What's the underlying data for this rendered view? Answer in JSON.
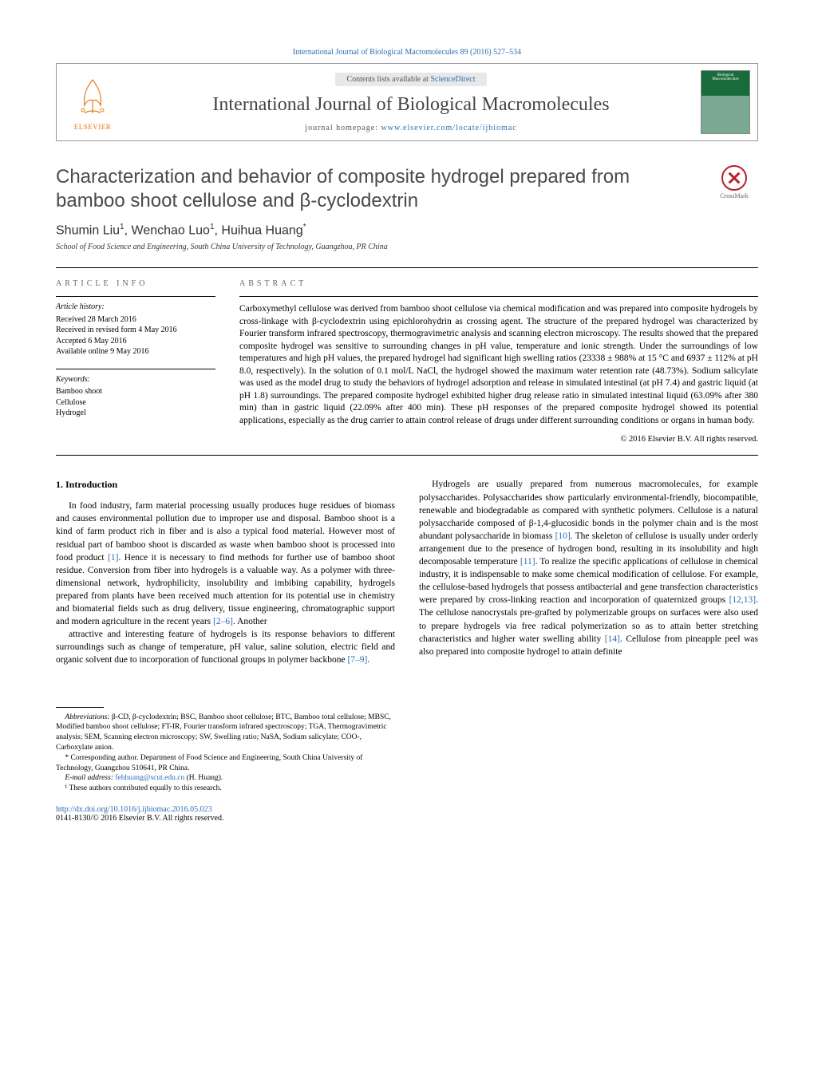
{
  "citation": "International Journal of Biological Macromolecules 89 (2016) 527–534",
  "header": {
    "contents_prefix": "Contents lists available at ",
    "contents_link": "ScienceDirect",
    "journal_title": "International Journal of Biological Macromolecules",
    "homepage_prefix": "journal homepage: ",
    "homepage_url": "www.elsevier.com/locate/ijbiomac",
    "publisher_label": "ELSEVIER",
    "cover_text": "Biological Macromolecules"
  },
  "article": {
    "title": "Characterization and behavior of composite hydrogel prepared from bamboo shoot cellulose and β-cyclodextrin",
    "crossmark_label": "CrossMark",
    "authors_html": "Shumin Liu<sup>1</sup>, Wenchao Luo<sup>1</sup>, Huihua Huang<sup class='author-star'>*</sup>",
    "affiliation": "School of Food Science and Engineering, South China University of Technology, Guangzhou, PR China"
  },
  "info": {
    "label": "ARTICLE INFO",
    "history_hdr": "Article history:",
    "history": [
      "Received 28 March 2016",
      "Received in revised form 4 May 2016",
      "Accepted 6 May 2016",
      "Available online 9 May 2016"
    ],
    "keywords_hdr": "Keywords:",
    "keywords": [
      "Bamboo shoot",
      "Cellulose",
      "Hydrogel"
    ]
  },
  "abstract": {
    "label": "ABSTRACT",
    "text": "Carboxymethyl cellulose was derived from bamboo shoot cellulose via chemical modification and was prepared into composite hydrogels by cross-linkage with β-cyclodextrin using epichlorohydrin as crossing agent. The structure of the prepared hydrogel was characterized by Fourier transform infrared spectroscopy, thermogravimetric analysis and scanning electron microscopy. The results showed that the prepared composite hydrogel was sensitive to surrounding changes in pH value, temperature and ionic strength. Under the surroundings of low temperatures and high pH values, the prepared hydrogel had significant high swelling ratios (23338 ± 988% at 15 °C and 6937 ± 112% at pH 8.0, respectively). In the solution of 0.1 mol/L NaCl, the hydrogel showed the maximum water retention rate (48.73%). Sodium salicylate was used as the model drug to study the behaviors of hydrogel adsorption and release in simulated intestinal (at pH 7.4) and gastric liquid (at pH 1.8) surroundings. The prepared composite hydrogel exhibited higher drug release ratio in simulated intestinal liquid (63.09% after 380 min) than in gastric liquid (22.09% after 400 min). These pH responses of the prepared composite hydrogel showed its potential applications, especially as the drug carrier to attain control release of drugs under different surrounding conditions or organs in human body.",
    "copyright": "© 2016 Elsevier B.V. All rights reserved."
  },
  "body": {
    "section_heading": "1. Introduction",
    "p1": "In food industry, farm material processing usually produces huge residues of biomass and causes environmental pollution due to improper use and disposal. Bamboo shoot is a kind of farm product rich in fiber and is also a typical food material. However most of residual part of bamboo shoot is discarded as waste when bamboo shoot is processed into food product [1]. Hence it is necessary to find methods for further use of bamboo shoot residue. Conversion from fiber into hydrogels is a valuable way. As a polymer with three-dimensional network, hydrophilicity, insolubility and imbibing capability, hydrogels prepared from plants have been received much attention for its potential use in chemistry and biomaterial fields such as drug delivery, tissue engineering, chromatographic support and modern agriculture in the recent years [2–6]. Another",
    "p2": "attractive and interesting feature of hydrogels is its response behaviors to different surroundings such as change of temperature, pH value, saline solution, electric field and organic solvent due to incorporation of functional groups in polymer backbone [7–9].",
    "p3": "Hydrogels are usually prepared from numerous macromolecules, for example polysaccharides. Polysaccharides show particularly environmental-friendly, biocompatible, renewable and biodegradable as compared with synthetic polymers. Cellulose is a natural polysaccharide composed of β-1,4-glucosidic bonds in the polymer chain and is the most abundant polysaccharide in biomass [10]. The skeleton of cellulose is usually under orderly arrangement due to the presence of hydrogen bond, resulting in its insolubility and high decomposable temperature [11]. To realize the specific applications of cellulose in chemical industry, it is indispensable to make some chemical modification of cellulose. For example, the cellulose-based hydrogels that possess antibacterial and gene transfection characteristics were prepared by cross-linking reaction and incorporation of quaternized groups [12,13]. The cellulose nanocrystals pre-grafted by polymerizable groups on surfaces were also used to prepare hydrogels via free radical polymerization so as to attain better stretching characteristics and higher water swelling ability [14]. Cellulose from pineapple peel was also prepared into composite hydrogel to attain definite",
    "refs": {
      "r1": "[1]",
      "r2_6": "[2–6]",
      "r7_9": "[7–9]",
      "r10": "[10]",
      "r11": "[11]",
      "r12_13": "[12,13]",
      "r14": "[14]"
    }
  },
  "footnotes": {
    "abbrev_label": "Abbreviations:",
    "abbrev_text": " β-CD, β-cyclodextrin; BSC, Bamboo shoot cellulose; BTC, Bamboo total cellulose; MBSC, Modified bamboo shoot cellulose; FT-IR, Fourier transform infrared spectroscopy; TGA, Thermogravimetric analysis; SEM, Scanning electron microscopy; SW, Swelling ratio; NaSA, Sodium salicylate; COO-, Carboxylate anion.",
    "corr_label": "* Corresponding author. ",
    "corr_text": "Department of Food Science and Engineering, South China University of Technology, Guangzhou 510641, PR China.",
    "email_label": "E-mail address: ",
    "email": "fehhuang@scut.edu.cn",
    "email_suffix": " (H. Huang).",
    "equal": "¹ These authors contributed equally to this research."
  },
  "doi": {
    "url": "http://dx.doi.org/10.1016/j.ijbiomac.2016.05.023",
    "issn_line": "0141-8130/© 2016 Elsevier B.V. All rights reserved."
  },
  "colors": {
    "link": "#2b6db5",
    "elsevier_orange": "#e57b1e",
    "crossmark_red": "#b91f2e",
    "cover_green": "#1a6b3a"
  }
}
